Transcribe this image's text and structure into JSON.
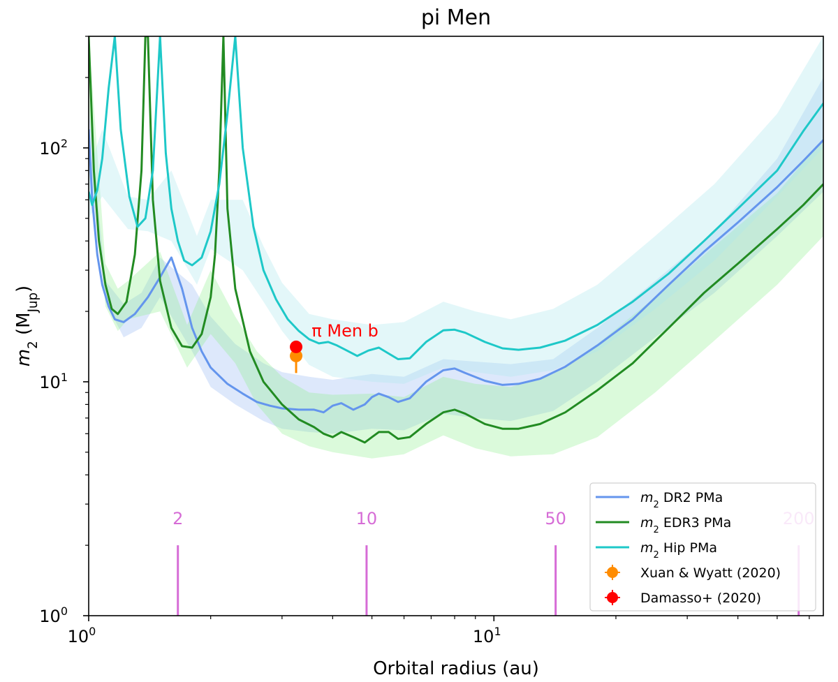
{
  "chart_data": {
    "type": "line",
    "title": "pi Men",
    "xlabel": "Orbital radius (au)",
    "ylabel": "m_2 (M_Jup)",
    "xscale": "log",
    "yscale": "log",
    "xlim": [
      1.0,
      65
    ],
    "ylim": [
      1.0,
      300
    ],
    "xticks": [
      {
        "value": 1,
        "base": "10",
        "exp": "0"
      },
      {
        "value": 10,
        "base": "10",
        "exp": "1"
      }
    ],
    "yticks": [
      {
        "value": 1,
        "base": "10",
        "exp": "0"
      },
      {
        "value": 10,
        "base": "10",
        "exp": "1"
      },
      {
        "value": 100,
        "base": "10",
        "exp": "2"
      }
    ],
    "series": [
      {
        "name": "m2 DR2 PMa",
        "color": "#6495ed",
        "band_color": "#6495ed",
        "x": [
          1.0,
          1.02,
          1.05,
          1.08,
          1.12,
          1.16,
          1.22,
          1.3,
          1.4,
          1.5,
          1.6,
          1.7,
          1.8,
          1.9,
          2.0,
          2.2,
          2.4,
          2.6,
          2.8,
          3.0,
          3.3,
          3.6,
          3.8,
          4.0,
          4.2,
          4.5,
          4.8,
          5.0,
          5.2,
          5.5,
          5.8,
          6.2,
          6.8,
          7.5,
          8.0,
          8.5,
          9.5,
          10.5,
          11.5,
          13.0,
          15.0,
          18.0,
          22.0,
          27.0,
          33.0,
          40.0,
          50.0,
          58.0,
          65.0
        ],
        "values": [
          120,
          60,
          35,
          26,
          21,
          18.5,
          18,
          19.5,
          23,
          28,
          34,
          25,
          17,
          13.5,
          11.5,
          9.8,
          8.9,
          8.2,
          7.9,
          7.7,
          7.6,
          7.6,
          7.4,
          7.9,
          8.1,
          7.6,
          8.0,
          8.6,
          8.9,
          8.6,
          8.2,
          8.5,
          10.0,
          11.2,
          11.4,
          10.9,
          10.1,
          9.7,
          9.8,
          10.3,
          11.6,
          14.3,
          18.5,
          26.0,
          36.0,
          48.0,
          68.0,
          88.0,
          108.0
        ],
        "band": {
          "x": [
            1.0,
            1.1,
            1.22,
            1.35,
            1.5,
            1.8,
            2.0,
            2.3,
            2.7,
            3.0,
            3.5,
            4.0,
            5.0,
            6.0,
            7.5,
            9.0,
            11.0,
            14.0,
            18.0,
            25.0,
            35.0,
            50.0,
            65.0
          ],
          "lower": [
            80,
            22,
            15.5,
            17,
            23,
            13.5,
            9.5,
            8.0,
            6.8,
            6.3,
            6.1,
            6.0,
            6.3,
            6.2,
            7.3,
            7.0,
            6.8,
            7.5,
            10.0,
            15.5,
            24.0,
            42.0,
            65.0
          ],
          "upper": [
            150,
            27,
            21.5,
            24,
            34,
            26,
            19,
            14.5,
            12.0,
            11.0,
            10.5,
            10.2,
            10.8,
            10.5,
            12.5,
            12.2,
            11.9,
            12.5,
            17.0,
            27.0,
            44.0,
            90.0,
            200.0
          ]
        }
      },
      {
        "name": "m2 EDR3 PMa",
        "color": "#228b22",
        "band_color": "#90ee90",
        "x": [
          1.0,
          1.03,
          1.06,
          1.1,
          1.14,
          1.18,
          1.24,
          1.3,
          1.35,
          1.38,
          1.4,
          1.44,
          1.5,
          1.6,
          1.7,
          1.8,
          1.9,
          2.0,
          2.05,
          2.1,
          2.15,
          2.2,
          2.3,
          2.5,
          2.7,
          3.0,
          3.3,
          3.6,
          3.8,
          4.0,
          4.2,
          4.5,
          4.8,
          5.0,
          5.2,
          5.5,
          5.8,
          6.2,
          6.8,
          7.5,
          8.0,
          8.5,
          9.5,
          10.5,
          11.5,
          13.0,
          15.0,
          18.0,
          22.0,
          27.0,
          33.0,
          40.0,
          50.0,
          58.0,
          65.0
        ],
        "values": [
          300,
          80,
          40,
          26,
          20.5,
          19.5,
          22,
          35,
          80,
          300,
          300,
          60,
          27,
          17,
          14.2,
          14,
          16,
          23,
          35,
          80,
          300,
          55,
          25,
          13.5,
          10,
          8.0,
          6.9,
          6.4,
          6.0,
          5.8,
          6.1,
          5.8,
          5.5,
          5.8,
          6.1,
          6.1,
          5.7,
          5.8,
          6.6,
          7.4,
          7.6,
          7.3,
          6.6,
          6.3,
          6.3,
          6.6,
          7.4,
          9.2,
          12.0,
          17.0,
          24.0,
          32.0,
          45.0,
          57.0,
          70.0
        ],
        "band": {
          "x": [
            1.0,
            1.1,
            1.18,
            1.25,
            1.5,
            1.75,
            2.0,
            2.3,
            2.6,
            3.0,
            3.5,
            4.0,
            5.0,
            6.0,
            7.5,
            9.0,
            11.0,
            14.0,
            18.0,
            25.0,
            35.0,
            50.0,
            65.0
          ],
          "lower": [
            150,
            21,
            16.5,
            18.5,
            20,
            11.5,
            16,
            12.0,
            8.0,
            6.0,
            5.3,
            5.0,
            4.7,
            4.9,
            5.9,
            5.2,
            4.8,
            4.9,
            5.8,
            9.0,
            15.0,
            26.0,
            42.0
          ],
          "upper": [
            300,
            32,
            25,
            27,
            36,
            17.5,
            30,
            19.0,
            13.5,
            10.5,
            9.0,
            8.8,
            8.9,
            8.6,
            10.5,
            9.8,
            9.5,
            10.8,
            14.5,
            23.0,
            38.0,
            64.0,
            110.0
          ]
        }
      },
      {
        "name": "m2 Hip PMa",
        "color": "#1ec8c8",
        "band_color": "#aee8ee",
        "x": [
          1.0,
          1.02,
          1.05,
          1.08,
          1.12,
          1.16,
          1.2,
          1.26,
          1.32,
          1.38,
          1.44,
          1.5,
          1.55,
          1.6,
          1.66,
          1.72,
          1.8,
          1.9,
          2.0,
          2.1,
          2.2,
          2.3,
          2.4,
          2.55,
          2.7,
          2.9,
          3.1,
          3.3,
          3.5,
          3.7,
          3.9,
          4.1,
          4.3,
          4.6,
          4.9,
          5.2,
          5.5,
          5.8,
          6.2,
          6.8,
          7.5,
          8.0,
          8.5,
          9.5,
          10.5,
          11.5,
          13.0,
          15.0,
          18.0,
          22.0,
          27.0,
          33.0,
          40.0,
          50.0,
          58.0,
          65.0
        ],
        "values": [
          65,
          57,
          66,
          90,
          180,
          300,
          120,
          62,
          46,
          50,
          80,
          300,
          95,
          55,
          40,
          33,
          31.5,
          34,
          44,
          70,
          140,
          300,
          100,
          46,
          30,
          22.5,
          18.5,
          16.5,
          15.2,
          14.6,
          14.8,
          14.3,
          13.7,
          12.9,
          13.6,
          14.0,
          13.2,
          12.5,
          12.6,
          14.8,
          16.6,
          16.7,
          16.2,
          14.8,
          13.9,
          13.7,
          14.0,
          15.0,
          17.5,
          22.0,
          29.0,
          40.0,
          55.0,
          80.0,
          118.0,
          155.0
        ],
        "band": {
          "x": [
            1.0,
            1.08,
            1.25,
            1.4,
            1.6,
            1.85,
            2.0,
            2.4,
            2.7,
            3.0,
            3.5,
            4.0,
            5.0,
            6.0,
            7.5,
            9.0,
            11.0,
            14.0,
            18.0,
            25.0,
            35.0,
            50.0,
            65.0
          ],
          "lower": [
            50,
            62,
            45,
            44,
            40,
            26,
            37,
            30,
            22,
            16.5,
            11.8,
            10.5,
            10.0,
            9.8,
            11.5,
            11.0,
            10.5,
            11.2,
            13.5,
            20.5,
            33.0,
            62.0,
            100.0
          ],
          "upper": [
            80,
            120,
            62,
            60,
            80,
            42,
            60,
            60,
            38,
            26.5,
            19.5,
            18.5,
            17.5,
            18.0,
            22.0,
            20.0,
            18.5,
            20.5,
            26.0,
            42.0,
            70.0,
            140.0,
            300.0
          ]
        }
      }
    ],
    "points": [
      {
        "name": "Xuan & Wyatt (2020)",
        "x": 3.25,
        "y": 12.9,
        "yerr_low": 2.0,
        "yerr_high": 0.6,
        "color": "#ff8c00"
      },
      {
        "name": "Damasso+ (2020)",
        "x": 3.25,
        "y": 14.1,
        "color": "#ff0000"
      }
    ],
    "annotations": [
      {
        "text": "π Men b",
        "x": 3.55,
        "y": 16.5,
        "color": "#ff0000"
      }
    ],
    "period_markers": {
      "color": "#d66cd6",
      "y_top": 2.0,
      "label_y": 2.6,
      "items": [
        {
          "label": "2",
          "x": 1.66
        },
        {
          "label": "10",
          "x": 4.85
        },
        {
          "label": "50",
          "x": 14.2
        },
        {
          "label": "200",
          "x": 56.5
        }
      ]
    },
    "legend": {
      "position": "lower right"
    }
  }
}
